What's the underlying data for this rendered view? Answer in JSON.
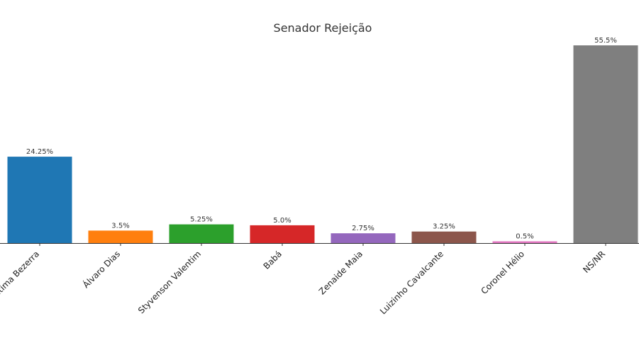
{
  "chart_data": {
    "type": "bar",
    "title": "Senador Rejeição",
    "xlabel": "",
    "ylabel": "",
    "categories": [
      "Fátima Bezerra",
      "Álvaro Dias",
      "Styvenson Valentim",
      "Babá",
      "Zenaide Maia",
      "Luizinho Cavalcante",
      "Coronel Hélio",
      "NS/NR"
    ],
    "values": [
      24.25,
      3.5,
      5.25,
      5.0,
      2.75,
      3.25,
      0.5,
      55.5
    ],
    "data_labels": [
      "24.25%",
      "3.5%",
      "5.25%",
      "5.0%",
      "2.75%",
      "3.25%",
      "0.5%",
      "55.5%"
    ],
    "colors": [
      "#1f77b4",
      "#ff7f0e",
      "#2ca02c",
      "#d62728",
      "#9467bd",
      "#8c564b",
      "#e377c2",
      "#7f7f7f"
    ],
    "ylim": [
      0,
      55.5
    ],
    "grid": false,
    "legend": "none"
  }
}
